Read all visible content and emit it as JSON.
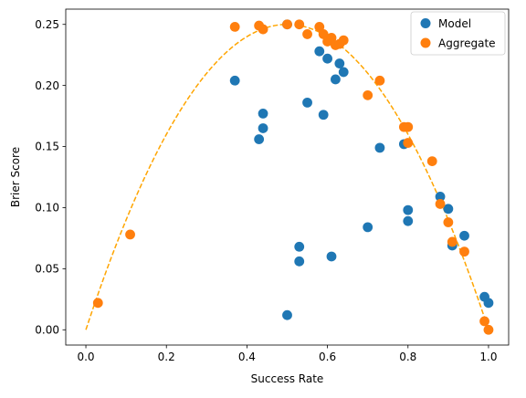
{
  "chart_data": {
    "type": "scatter",
    "title": "",
    "xlabel": "Success Rate",
    "ylabel": "Brier Score",
    "xlim": [
      -0.05,
      1.05
    ],
    "ylim": [
      -0.0125,
      0.2625
    ],
    "xticks": [
      0.0,
      0.2,
      0.4,
      0.6,
      0.8,
      1.0
    ],
    "xtick_labels": [
      "0.0",
      "0.2",
      "0.4",
      "0.6",
      "0.8",
      "1.0"
    ],
    "yticks": [
      0.0,
      0.05,
      0.1,
      0.15,
      0.2,
      0.25
    ],
    "ytick_labels": [
      "0.00",
      "0.05",
      "0.10",
      "0.15",
      "0.20",
      "0.25"
    ],
    "grid": false,
    "legend_position": "top-right",
    "series": [
      {
        "name": "Model",
        "color": "#1f77b4",
        "points": [
          [
            0.37,
            0.204
          ],
          [
            0.43,
            0.156
          ],
          [
            0.44,
            0.177
          ],
          [
            0.44,
            0.165
          ],
          [
            0.5,
            0.25
          ],
          [
            0.5,
            0.012
          ],
          [
            0.53,
            0.068
          ],
          [
            0.53,
            0.056
          ],
          [
            0.55,
            0.186
          ],
          [
            0.58,
            0.228
          ],
          [
            0.59,
            0.176
          ],
          [
            0.6,
            0.222
          ],
          [
            0.61,
            0.06
          ],
          [
            0.62,
            0.205
          ],
          [
            0.63,
            0.218
          ],
          [
            0.64,
            0.211
          ],
          [
            0.7,
            0.084
          ],
          [
            0.73,
            0.149
          ],
          [
            0.79,
            0.152
          ],
          [
            0.8,
            0.098
          ],
          [
            0.8,
            0.089
          ],
          [
            0.88,
            0.109
          ],
          [
            0.9,
            0.099
          ],
          [
            0.91,
            0.069
          ],
          [
            0.94,
            0.077
          ],
          [
            0.99,
            0.027
          ],
          [
            1.0,
            0.022
          ]
        ]
      },
      {
        "name": "Aggregate",
        "color": "#ff7f0e",
        "points": [
          [
            0.03,
            0.022
          ],
          [
            0.11,
            0.078
          ],
          [
            0.37,
            0.248
          ],
          [
            0.43,
            0.249
          ],
          [
            0.44,
            0.246
          ],
          [
            0.5,
            0.25
          ],
          [
            0.53,
            0.25
          ],
          [
            0.55,
            0.242
          ],
          [
            0.58,
            0.248
          ],
          [
            0.59,
            0.242
          ],
          [
            0.6,
            0.236
          ],
          [
            0.61,
            0.239
          ],
          [
            0.62,
            0.233
          ],
          [
            0.63,
            0.234
          ],
          [
            0.64,
            0.237
          ],
          [
            0.7,
            0.192
          ],
          [
            0.73,
            0.204
          ],
          [
            0.79,
            0.166
          ],
          [
            0.8,
            0.166
          ],
          [
            0.8,
            0.153
          ],
          [
            0.86,
            0.138
          ],
          [
            0.88,
            0.103
          ],
          [
            0.9,
            0.088
          ],
          [
            0.91,
            0.072
          ],
          [
            0.94,
            0.064
          ],
          [
            0.99,
            0.007
          ],
          [
            1.0,
            0.0
          ]
        ]
      }
    ],
    "reference_curve": {
      "formula": "p(1-p)",
      "color": "#ffa500",
      "style": "dashed",
      "x_range": [
        0,
        1
      ]
    }
  }
}
